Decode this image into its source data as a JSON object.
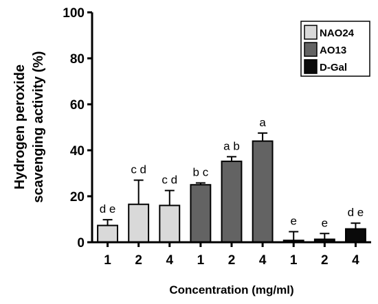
{
  "chart_data": {
    "type": "bar",
    "ylabel_line1": "Hydrogen peroxide",
    "ylabel_line2": "scavenging activity (%)",
    "xlabel": "Concentration (mg/ml)",
    "ylim": [
      0,
      100
    ],
    "yticks": [
      "0",
      "20",
      "40",
      "60",
      "80",
      "100"
    ],
    "legend_position": "top-right",
    "series": [
      {
        "name": "NAO24",
        "color": "#d9d9d9",
        "categories": [
          "1",
          "2",
          "4"
        ],
        "values": [
          7.3,
          16.5,
          16.0
        ],
        "errors": [
          2.5,
          10.5,
          6.5
        ],
        "sig": [
          "d e",
          "c d",
          "c d"
        ]
      },
      {
        "name": "AO13",
        "color": "#636363",
        "categories": [
          "1",
          "2",
          "4"
        ],
        "values": [
          25.0,
          35.2,
          44.0
        ],
        "errors": [
          0.8,
          2.0,
          3.5
        ],
        "sig": [
          "b c",
          "a b",
          "a"
        ]
      },
      {
        "name": "D-Gal",
        "color": "#0a0a0a",
        "categories": [
          "1",
          "2",
          "4"
        ],
        "values": [
          0.8,
          1.3,
          5.8
        ],
        "errors": [
          3.8,
          2.5,
          2.5
        ],
        "sig": [
          "e",
          "e",
          "d e"
        ]
      }
    ]
  }
}
